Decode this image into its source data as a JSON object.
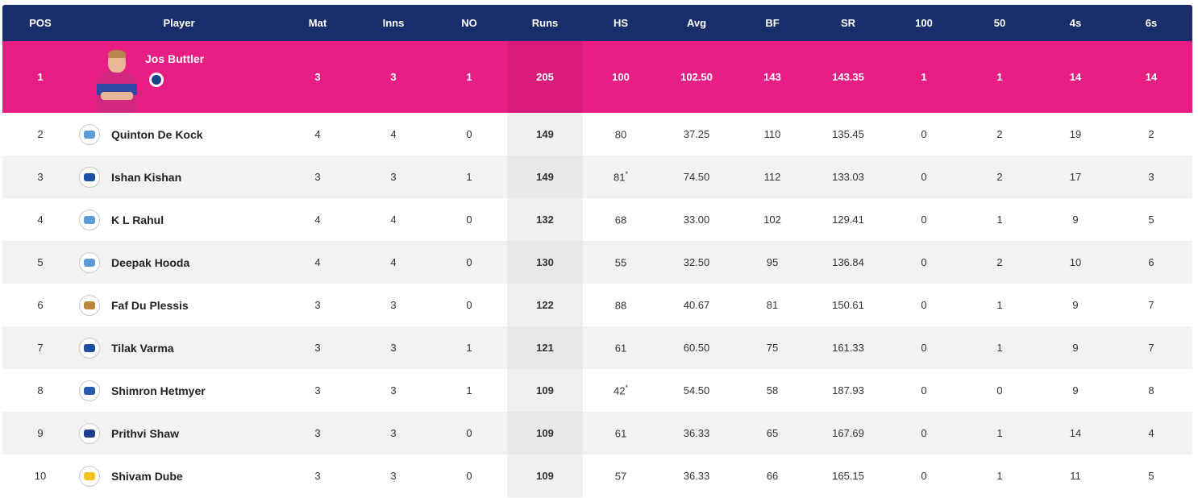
{
  "columns": {
    "pos": "POS",
    "player": "Player",
    "mat": "Mat",
    "inns": "Inns",
    "no": "NO",
    "runs": "Runs",
    "hs": "HS",
    "avg": "Avg",
    "bf": "BF",
    "sr": "SR",
    "hundreds": "100",
    "fifties": "50",
    "fours": "4s",
    "sixes": "6s"
  },
  "leader": {
    "pos": "1",
    "player": "Jos Buttler",
    "team_icon": "rajasthan-royals-logo",
    "mat": "3",
    "inns": "3",
    "no": "1",
    "runs": "205",
    "hs": "100",
    "avg": "102.50",
    "bf": "143",
    "sr": "143.35",
    "hundreds": "1",
    "fifties": "1",
    "fours": "14",
    "sixes": "14"
  },
  "rows": [
    {
      "pos": "2",
      "player": "Quinton De Kock",
      "team_icon": "lucknow-logo",
      "team_color": "#5d9bd8",
      "mat": "4",
      "inns": "4",
      "no": "0",
      "runs": "149",
      "hs": "80",
      "hs_star": "",
      "avg": "37.25",
      "bf": "110",
      "sr": "135.45",
      "hundreds": "0",
      "fifties": "2",
      "fours": "19",
      "sixes": "2"
    },
    {
      "pos": "3",
      "player": "Ishan Kishan",
      "team_icon": "mumbai-logo",
      "team_color": "#1f4ea3",
      "mat": "3",
      "inns": "3",
      "no": "1",
      "runs": "149",
      "hs": "81",
      "hs_star": "*",
      "avg": "74.50",
      "bf": "112",
      "sr": "133.03",
      "hundreds": "0",
      "fifties": "2",
      "fours": "17",
      "sixes": "3"
    },
    {
      "pos": "4",
      "player": "K L Rahul",
      "team_icon": "lucknow-logo",
      "team_color": "#5d9bd8",
      "mat": "4",
      "inns": "4",
      "no": "0",
      "runs": "132",
      "hs": "68",
      "hs_star": "",
      "avg": "33.00",
      "bf": "102",
      "sr": "129.41",
      "hundreds": "0",
      "fifties": "1",
      "fours": "9",
      "sixes": "5"
    },
    {
      "pos": "5",
      "player": "Deepak Hooda",
      "team_icon": "lucknow-logo",
      "team_color": "#5d9bd8",
      "mat": "4",
      "inns": "4",
      "no": "0",
      "runs": "130",
      "hs": "55",
      "hs_star": "",
      "avg": "32.50",
      "bf": "95",
      "sr": "136.84",
      "hundreds": "0",
      "fifties": "2",
      "fours": "10",
      "sixes": "6"
    },
    {
      "pos": "6",
      "player": "Faf Du Plessis",
      "team_icon": "bangalore-logo",
      "team_color": "#b8893a",
      "mat": "3",
      "inns": "3",
      "no": "0",
      "runs": "122",
      "hs": "88",
      "hs_star": "",
      "avg": "40.67",
      "bf": "81",
      "sr": "150.61",
      "hundreds": "0",
      "fifties": "1",
      "fours": "9",
      "sixes": "7"
    },
    {
      "pos": "7",
      "player": "Tilak Varma",
      "team_icon": "mumbai-logo",
      "team_color": "#1f4ea3",
      "mat": "3",
      "inns": "3",
      "no": "1",
      "runs": "121",
      "hs": "61",
      "hs_star": "",
      "avg": "60.50",
      "bf": "75",
      "sr": "161.33",
      "hundreds": "0",
      "fifties": "1",
      "fours": "9",
      "sixes": "7"
    },
    {
      "pos": "8",
      "player": "Shimron Hetmyer",
      "team_icon": "rajasthan-royals-logo",
      "team_color": "#2a58a8",
      "mat": "3",
      "inns": "3",
      "no": "1",
      "runs": "109",
      "hs": "42",
      "hs_star": "*",
      "avg": "54.50",
      "bf": "58",
      "sr": "187.93",
      "hundreds": "0",
      "fifties": "0",
      "fours": "9",
      "sixes": "8"
    },
    {
      "pos": "9",
      "player": "Prithvi Shaw",
      "team_icon": "delhi-logo",
      "team_color": "#1d3f8f",
      "mat": "3",
      "inns": "3",
      "no": "0",
      "runs": "109",
      "hs": "61",
      "hs_star": "",
      "avg": "36.33",
      "bf": "65",
      "sr": "167.69",
      "hundreds": "0",
      "fifties": "1",
      "fours": "14",
      "sixes": "4"
    },
    {
      "pos": "10",
      "player": "Shivam Dube",
      "team_icon": "chennai-logo",
      "team_color": "#f2c21b",
      "mat": "3",
      "inns": "3",
      "no": "0",
      "runs": "109",
      "hs": "57",
      "hs_star": "",
      "avg": "36.33",
      "bf": "66",
      "sr": "165.15",
      "hundreds": "0",
      "fifties": "1",
      "fours": "11",
      "sixes": "5"
    }
  ]
}
